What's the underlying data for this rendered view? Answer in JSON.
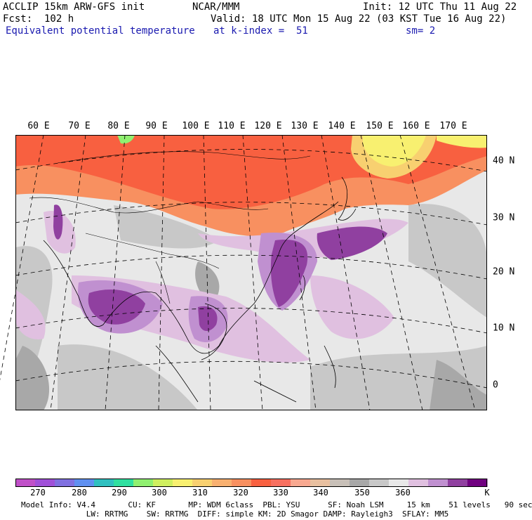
{
  "header": {
    "model": "ACCLIP 15km ARW-GFS init",
    "fcst": "Fcst:  102 h",
    "field": "Equivalent potential temperature",
    "center": "NCAR/MMM",
    "valid": "Valid: 18 UTC Mon 15 Aug 22 (03 KST Tue 16 Aug 22)",
    "level": "at k-index =  51",
    "init": "Init: 12 UTC Thu 11 Aug 22",
    "smooth": "sm= 2"
  },
  "map": {
    "lon_labels": [
      "60 E",
      "70 E",
      "80 E",
      "90 E",
      "100 E",
      "110 E",
      "120 E",
      "130 E",
      "140 E",
      "150 E",
      "160 E",
      "170 E"
    ],
    "lat_labels": [
      "40 N",
      "30 N",
      "20 N",
      "10 N",
      "0"
    ]
  },
  "colorbar": {
    "colors": [
      "#c050c8",
      "#a050d8",
      "#8070e0",
      "#6090f0",
      "#30c0c0",
      "#30e0a0",
      "#90f070",
      "#d0f060",
      "#f8f070",
      "#f8d070",
      "#f8b070",
      "#f89060",
      "#f86040",
      "#f87060",
      "#f8a890",
      "#e8c0a0",
      "#c8c0b8",
      "#a8a8a8",
      "#c8c8c8",
      "#e8e8e8",
      "#e0c0e0",
      "#c090d0",
      "#9040a0",
      "#700080"
    ],
    "ticks": [
      "270",
      "280",
      "290",
      "300",
      "310",
      "320",
      "330",
      "340",
      "350",
      "360",
      "K"
    ]
  },
  "footer": {
    "line1": "Model Info: V4.4       CU: KF       MP: WDM 6class  PBL: YSU      SF: Noah LSM     15 km    51 levels   90 sec",
    "line2": "              LW: RRTMG    SW: RRTMG  DIFF: simple KM: 2D Smagor DAMP: Rayleigh3  SFLAY: MM5"
  }
}
